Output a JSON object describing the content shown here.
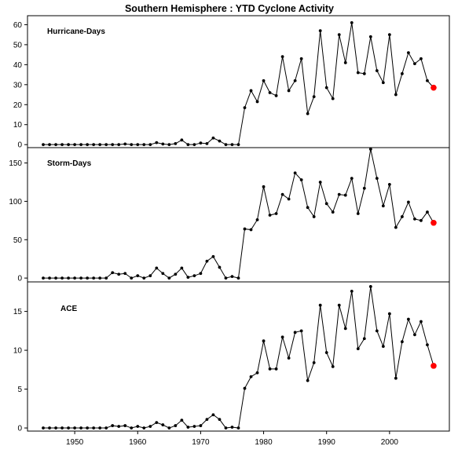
{
  "chart_data": {
    "type": "line",
    "title": "Southern Hemisphere : YTD Cyclone Activity",
    "x": [
      1945,
      1946,
      1947,
      1948,
      1949,
      1950,
      1951,
      1952,
      1953,
      1954,
      1955,
      1956,
      1957,
      1958,
      1959,
      1960,
      1961,
      1962,
      1963,
      1964,
      1965,
      1966,
      1967,
      1968,
      1969,
      1970,
      1971,
      1972,
      1973,
      1974,
      1975,
      1976,
      1977,
      1978,
      1979,
      1980,
      1981,
      1982,
      1983,
      1984,
      1985,
      1986,
      1987,
      1988,
      1989,
      1990,
      1991,
      1992,
      1993,
      1994,
      1995,
      1996,
      1997,
      1998,
      1999,
      2000,
      2001,
      2002,
      2003,
      2004,
      2005,
      2006,
      2007
    ],
    "xlim": [
      1942.5,
      2009.5
    ],
    "x_ticks": [
      1950,
      1960,
      1970,
      1980,
      1990,
      2000
    ],
    "x_tick_labels": [
      "1950",
      "1960",
      "1970",
      "1980",
      "1990",
      "2000"
    ],
    "highlight_color": "#ff0000",
    "line_color": "#000000",
    "panels": [
      {
        "label": "Hurricane-Days",
        "ylim": [
          -1.5,
          64.5
        ],
        "y_ticks": [
          0,
          10,
          20,
          30,
          40,
          50,
          60
        ],
        "y_tick_labels": [
          "0",
          "10",
          "20",
          "30",
          "40",
          "50",
          "60"
        ],
        "values": [
          0,
          0,
          0,
          0,
          0,
          0,
          0,
          0,
          0,
          0,
          0,
          0,
          0,
          0.3,
          0,
          0,
          0,
          0,
          1,
          0.3,
          0,
          0.5,
          2.3,
          0,
          0,
          0.8,
          0.5,
          3.3,
          1.8,
          0,
          0,
          0,
          18.5,
          27,
          21.5,
          32,
          26,
          24.5,
          44,
          27,
          32,
          43,
          15.5,
          24,
          57,
          28.5,
          23,
          55,
          41,
          61,
          36,
          35.5,
          54,
          37,
          31,
          55,
          25,
          35.5,
          46,
          40.5,
          43,
          32,
          28.5
        ]
      },
      {
        "label": "Storm-Days",
        "ylim": [
          -5,
          170
        ],
        "y_ticks": [
          0,
          50,
          100,
          150
        ],
        "y_tick_labels": [
          "0",
          "50",
          "100",
          "150"
        ],
        "values": [
          0,
          0,
          0,
          0,
          0,
          0,
          0,
          0,
          0,
          0,
          0,
          7,
          5,
          6,
          0,
          3,
          0,
          3,
          13,
          6,
          0,
          5,
          13,
          1,
          3,
          6,
          22,
          28,
          14,
          0,
          2,
          0,
          64,
          63,
          76,
          119,
          82,
          84,
          109,
          103,
          137,
          128,
          92,
          80,
          125,
          97,
          86,
          109,
          108,
          130,
          84,
          117,
          168,
          130,
          94,
          122,
          66,
          80,
          99,
          77,
          75,
          86,
          72
        ]
      },
      {
        "label": "ACE",
        "ylim": [
          -0.4,
          18.8
        ],
        "y_ticks": [
          0,
          5,
          10,
          15
        ],
        "y_tick_labels": [
          "0",
          "5",
          "10",
          "15"
        ],
        "values": [
          0,
          0,
          0,
          0,
          0,
          0,
          0,
          0,
          0,
          0,
          0,
          0.3,
          0.2,
          0.3,
          0,
          0.2,
          0,
          0.2,
          0.7,
          0.4,
          0,
          0.3,
          1,
          0.1,
          0.2,
          0.3,
          1.1,
          1.7,
          1.1,
          0,
          0.1,
          0,
          5.1,
          6.6,
          7.1,
          11.2,
          7.6,
          7.6,
          11.7,
          9,
          12.3,
          12.5,
          6.1,
          8.4,
          15.8,
          9.7,
          7.9,
          15.8,
          12.8,
          17.6,
          10.2,
          11.5,
          18.2,
          12.5,
          10.5,
          14.7,
          6.4,
          11.1,
          14,
          12,
          13.7,
          10.7,
          8
        ]
      }
    ]
  }
}
